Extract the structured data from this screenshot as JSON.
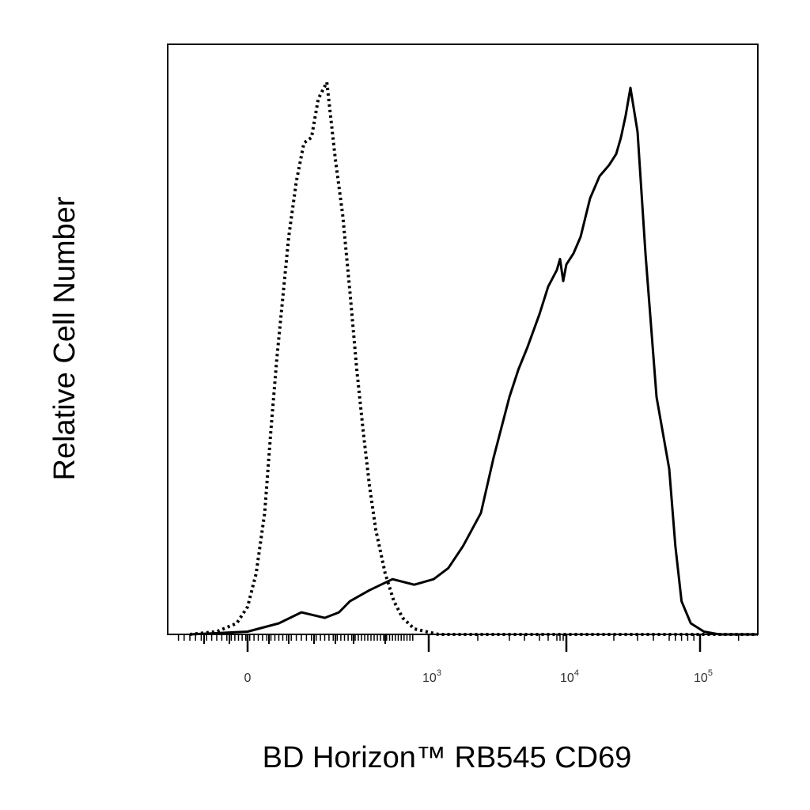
{
  "chart_data": {
    "type": "line",
    "title": "",
    "xlabel": "BD Horizon™ RB545 CD69",
    "ylabel": "Relative Cell Number",
    "x_scale": "biexponential",
    "xlim": [
      -300,
      250000
    ],
    "ylim": [
      0,
      1
    ],
    "grid": false,
    "legend": "none",
    "x_tick_labels": [
      {
        "value": 0,
        "base": "0",
        "exp": ""
      },
      {
        "value": 1000,
        "base": "10",
        "exp": "3"
      },
      {
        "value": 10000,
        "base": "10",
        "exp": "4"
      },
      {
        "value": 100000,
        "base": "10",
        "exp": "5"
      }
    ],
    "series": [
      {
        "style": "dotted",
        "color": "#000000",
        "x": [
          -250,
          -150,
          -60,
          0,
          40,
          80,
          110,
          140,
          170,
          200,
          230,
          260,
          290,
          320,
          360,
          400,
          440,
          480,
          520,
          560,
          600,
          640,
          700,
          760,
          820,
          900,
          1000,
          1200,
          2000,
          5000,
          20000,
          100000,
          250000
        ],
        "y": [
          0.0,
          0.005,
          0.02,
          0.05,
          0.11,
          0.22,
          0.37,
          0.5,
          0.61,
          0.72,
          0.82,
          0.89,
          0.9,
          0.97,
          1.0,
          0.86,
          0.76,
          0.62,
          0.48,
          0.37,
          0.27,
          0.19,
          0.11,
          0.06,
          0.03,
          0.01,
          0.004,
          0.0,
          0.0,
          0.0,
          0.0,
          0.0,
          0.0
        ]
      },
      {
        "style": "solid",
        "color": "#000000",
        "x": [
          -250,
          0,
          150,
          250,
          350,
          420,
          480,
          600,
          750,
          900,
          1100,
          1400,
          1700,
          2100,
          2500,
          3000,
          3600,
          4200,
          5000,
          6000,
          7000,
          8000,
          9000,
          10000,
          11500,
          13000,
          15000,
          17000,
          19000,
          21000,
          23000,
          25000,
          27000,
          30000,
          35000,
          42000,
          50000,
          60000,
          70000,
          85000,
          110000,
          150000,
          250000
        ],
        "y": [
          0.0,
          0.005,
          0.02,
          0.04,
          0.03,
          0.04,
          0.06,
          0.08,
          0.1,
          0.09,
          0.1,
          0.12,
          0.16,
          0.22,
          0.32,
          0.43,
          0.48,
          0.52,
          0.58,
          0.63,
          0.66,
          0.68,
          0.64,
          0.67,
          0.69,
          0.72,
          0.79,
          0.83,
          0.85,
          0.87,
          0.9,
          0.94,
          0.99,
          0.91,
          0.69,
          0.43,
          0.3,
          0.16,
          0.06,
          0.02,
          0.005,
          0.0,
          0.0
        ]
      }
    ]
  }
}
